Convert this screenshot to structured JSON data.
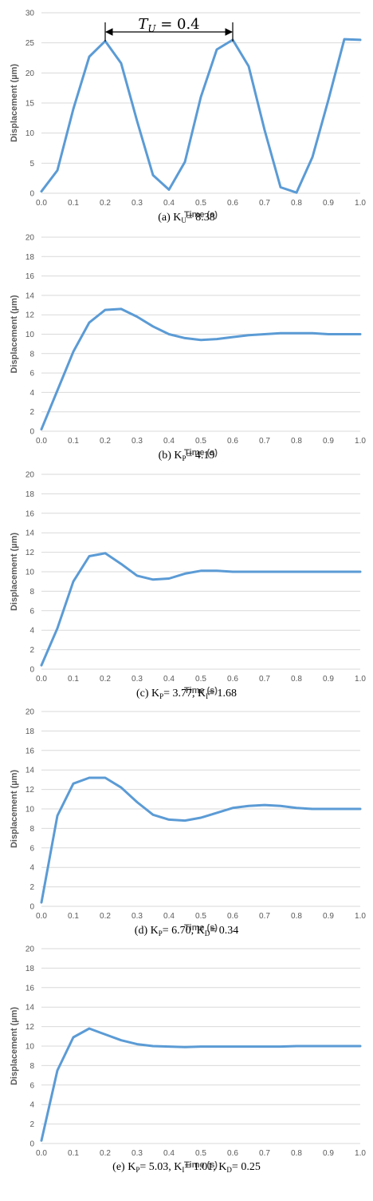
{
  "chart_data": [
    {
      "type": "line",
      "caption": {
        "prefix": "(a) ",
        "parts": [
          [
            "K",
            "U",
            "= 8.38"
          ]
        ]
      },
      "xlabel": "Time (s)",
      "ylabel": "Displacement (µm)",
      "xlim": [
        0,
        1.0
      ],
      "ylim": [
        0,
        30
      ],
      "xticks": [
        0.0,
        0.1,
        0.2,
        0.3,
        0.4,
        0.5,
        0.6,
        0.7,
        0.8,
        0.9,
        1.0
      ],
      "yticks": [
        0,
        5,
        10,
        15,
        20,
        25,
        30
      ],
      "grid": true,
      "annotation": {
        "text": "T",
        "sub": "U",
        "rest": " = 0.4",
        "x_start": 0.2,
        "x_end": 0.6
      },
      "series": [
        {
          "color": "#5b9bd5",
          "x": [
            0.0,
            0.05,
            0.1,
            0.15,
            0.2,
            0.25,
            0.3,
            0.35,
            0.4,
            0.45,
            0.5,
            0.55,
            0.6,
            0.65,
            0.7,
            0.75,
            0.8,
            0.85,
            0.9,
            0.95,
            1.0
          ],
          "y": [
            0.3,
            3.8,
            14.0,
            22.7,
            25.3,
            21.6,
            12.0,
            3.0,
            0.6,
            5.2,
            16.0,
            23.9,
            25.5,
            21.1,
            10.5,
            1.0,
            0.1,
            6.0,
            15.5,
            25.6,
            25.5
          ]
        }
      ]
    },
    {
      "type": "line",
      "caption": {
        "prefix": "(b) ",
        "parts": [
          [
            "K",
            "P",
            "= 4.19"
          ]
        ]
      },
      "xlabel": "Time (s)",
      "ylabel": "Displacement (µm)",
      "xlim": [
        0,
        1.0
      ],
      "ylim": [
        0,
        20
      ],
      "xticks": [
        0.0,
        0.1,
        0.2,
        0.3,
        0.4,
        0.5,
        0.6,
        0.7,
        0.8,
        0.9,
        1.0
      ],
      "yticks": [
        0,
        2,
        4,
        6,
        8,
        10,
        12,
        14,
        16,
        18,
        20
      ],
      "grid": true,
      "series": [
        {
          "color": "#5b9bd5",
          "x": [
            0.0,
            0.05,
            0.1,
            0.15,
            0.2,
            0.25,
            0.3,
            0.35,
            0.4,
            0.45,
            0.5,
            0.55,
            0.6,
            0.65,
            0.7,
            0.75,
            0.8,
            0.85,
            0.9,
            0.95,
            1.0
          ],
          "y": [
            0.2,
            4.2,
            8.2,
            11.2,
            12.5,
            12.6,
            11.8,
            10.8,
            10.0,
            9.6,
            9.4,
            9.5,
            9.7,
            9.9,
            10.0,
            10.1,
            10.1,
            10.1,
            10.0,
            10.0,
            10.0
          ]
        }
      ]
    },
    {
      "type": "line",
      "caption": {
        "prefix": "(c) ",
        "parts": [
          [
            "K",
            "P",
            "= 3.77, "
          ],
          [
            "K",
            "I",
            "= 1.68"
          ]
        ]
      },
      "xlabel": "Time (s)",
      "ylabel": "Displacement (µm)",
      "xlim": [
        0,
        1.0
      ],
      "ylim": [
        0,
        20
      ],
      "xticks": [
        0.0,
        0.1,
        0.2,
        0.3,
        0.4,
        0.5,
        0.6,
        0.7,
        0.8,
        0.9,
        1.0
      ],
      "yticks": [
        0,
        2,
        4,
        6,
        8,
        10,
        12,
        14,
        16,
        18,
        20
      ],
      "grid": true,
      "series": [
        {
          "color": "#5b9bd5",
          "x": [
            0.0,
            0.05,
            0.1,
            0.15,
            0.2,
            0.25,
            0.3,
            0.35,
            0.4,
            0.45,
            0.5,
            0.55,
            0.6,
            0.65,
            0.7,
            0.75,
            0.8,
            0.85,
            0.9,
            0.95,
            1.0
          ],
          "y": [
            0.4,
            4.2,
            9.0,
            11.6,
            11.9,
            10.8,
            9.6,
            9.2,
            9.3,
            9.8,
            10.1,
            10.1,
            10.0,
            10.0,
            10.0,
            10.0,
            10.0,
            10.0,
            10.0,
            10.0,
            10.0
          ]
        }
      ]
    },
    {
      "type": "line",
      "caption": {
        "prefix": "(d) ",
        "parts": [
          [
            "K",
            "P",
            "= 6.70, "
          ],
          [
            "K",
            "D",
            "= 0.34"
          ]
        ]
      },
      "xlabel": "Time (s)",
      "ylabel": "Displacement (µm)",
      "xlim": [
        0,
        1.0
      ],
      "ylim": [
        0,
        20
      ],
      "xticks": [
        0.0,
        0.1,
        0.2,
        0.3,
        0.4,
        0.5,
        0.6,
        0.7,
        0.8,
        0.9,
        1.0
      ],
      "yticks": [
        0,
        2,
        4,
        6,
        8,
        10,
        12,
        14,
        16,
        18,
        20
      ],
      "grid": true,
      "series": [
        {
          "color": "#5b9bd5",
          "x": [
            0.0,
            0.05,
            0.1,
            0.15,
            0.2,
            0.25,
            0.3,
            0.35,
            0.4,
            0.45,
            0.5,
            0.55,
            0.6,
            0.65,
            0.7,
            0.75,
            0.8,
            0.85,
            0.9,
            0.95,
            1.0
          ],
          "y": [
            0.4,
            9.3,
            12.6,
            13.2,
            13.2,
            12.2,
            10.7,
            9.4,
            8.9,
            8.8,
            9.1,
            9.6,
            10.1,
            10.3,
            10.4,
            10.3,
            10.1,
            10.0,
            10.0,
            10.0,
            10.0
          ]
        }
      ]
    },
    {
      "type": "line",
      "caption": {
        "prefix": "(e) ",
        "parts": [
          [
            "K",
            "P",
            "= 5.03, "
          ],
          [
            "K",
            "I",
            "= 1.01, "
          ],
          [
            "K",
            "D",
            "= 0.25"
          ]
        ]
      },
      "xlabel": "Time (s)",
      "ylabel": "Displacement (µm)",
      "xlim": [
        0,
        1.0
      ],
      "ylim": [
        0,
        20
      ],
      "xticks": [
        0.0,
        0.1,
        0.2,
        0.3,
        0.4,
        0.5,
        0.6,
        0.7,
        0.8,
        0.9,
        1.0
      ],
      "yticks": [
        0,
        2,
        4,
        6,
        8,
        10,
        12,
        14,
        16,
        18,
        20
      ],
      "grid": true,
      "series": [
        {
          "color": "#5b9bd5",
          "x": [
            0.0,
            0.05,
            0.1,
            0.15,
            0.2,
            0.25,
            0.3,
            0.35,
            0.4,
            0.45,
            0.5,
            0.55,
            0.6,
            0.65,
            0.7,
            0.75,
            0.8,
            0.85,
            0.9,
            0.95,
            1.0
          ],
          "y": [
            0.3,
            7.5,
            10.9,
            11.8,
            11.2,
            10.6,
            10.2,
            10.0,
            9.95,
            9.9,
            9.95,
            9.95,
            9.95,
            9.95,
            9.95,
            9.95,
            10.0,
            10.0,
            10.0,
            10.0,
            10.0
          ]
        }
      ]
    }
  ]
}
